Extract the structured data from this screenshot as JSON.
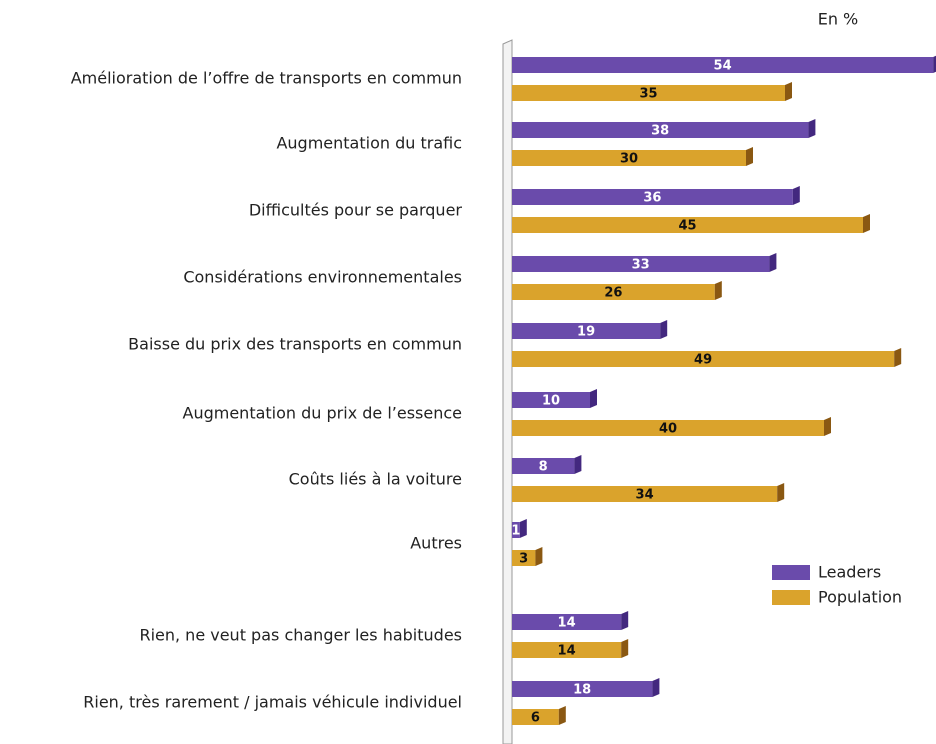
{
  "chart_data": {
    "type": "bar",
    "orientation": "horizontal",
    "unit_label": "En %",
    "categories": [
      "Amélioration de l’offre de transports en commun",
      "Augmentation du trafic",
      "Difficultés pour se parquer",
      "Considérations environnementales",
      "Baisse du prix des transports en commun",
      "Augmentation du prix de l’essence",
      "Coûts liés à la voiture",
      "Autres",
      "Rien, ne veut pas changer les habitudes",
      "Rien, très rarement / jamais véhicule individuel"
    ],
    "series": [
      {
        "name": "Leaders",
        "color": "#6a4bab",
        "side_color": "#43287f",
        "label_color": "#ffffff",
        "values": [
          54,
          38,
          36,
          33,
          19,
          10,
          8,
          1,
          14,
          18
        ]
      },
      {
        "name": "Population",
        "color": "#daa32c",
        "side_color": "#8a5812",
        "label_color": "#111111",
        "values": [
          35,
          30,
          45,
          26,
          49,
          40,
          34,
          3,
          14,
          6
        ]
      }
    ],
    "legend": "lower right"
  }
}
